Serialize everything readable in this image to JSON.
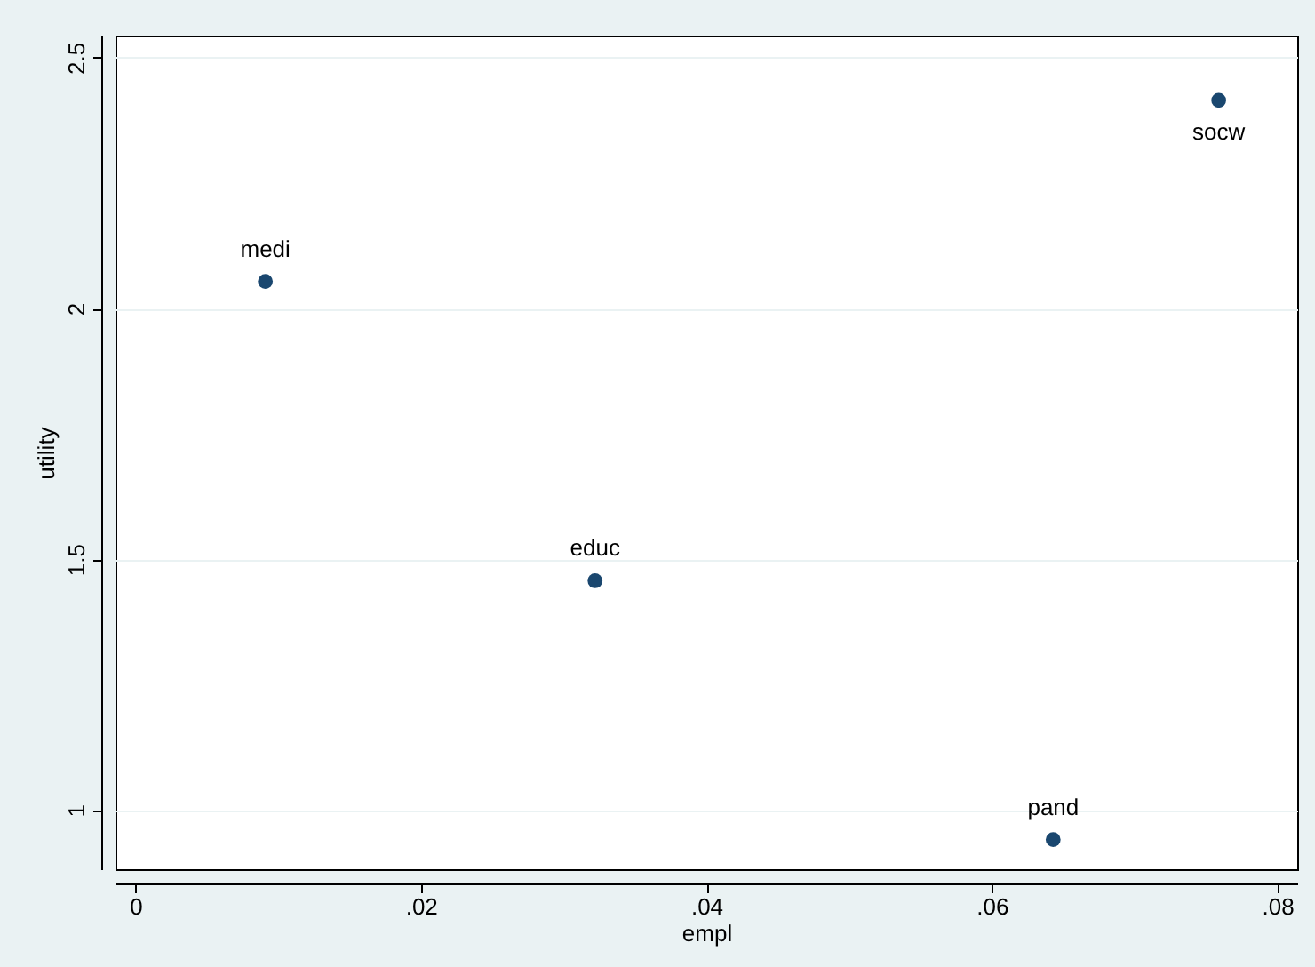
{
  "chart_data": {
    "type": "scatter",
    "xlabel": "empl",
    "ylabel": "utility",
    "x": [
      0.0091,
      0.0322,
      0.0643,
      0.0759
    ],
    "series": [
      {
        "color": "#1a476f",
        "values": [
          2.054,
          1.457,
          0.941,
          2.415
        ]
      }
    ],
    "annotations": [
      {
        "text": "medi",
        "x": 0.0091,
        "y": 2.054
      },
      {
        "text": "educ",
        "x": 0.0322,
        "y": 1.457
      },
      {
        "text": "pand",
        "x": 0.0643,
        "y": 0.941
      },
      {
        "text": "socw",
        "x": 0.0759,
        "y": 2.415
      }
    ],
    "xlim": [
      -0.0014,
      0.0814
    ],
    "ylim": [
      0.882,
      2.544
    ],
    "xticks": [
      0,
      {
        "value": 0.02,
        "label": ".02"
      },
      {
        "value": 0.04,
        "label": ".04"
      },
      {
        "value": 0.06,
        "label": ".06"
      },
      {
        "value": 0.08,
        "label": ".08"
      }
    ],
    "yticks": [
      1,
      1.5,
      2,
      2.5
    ],
    "grid": "y",
    "marker": "circle",
    "legend": false
  }
}
